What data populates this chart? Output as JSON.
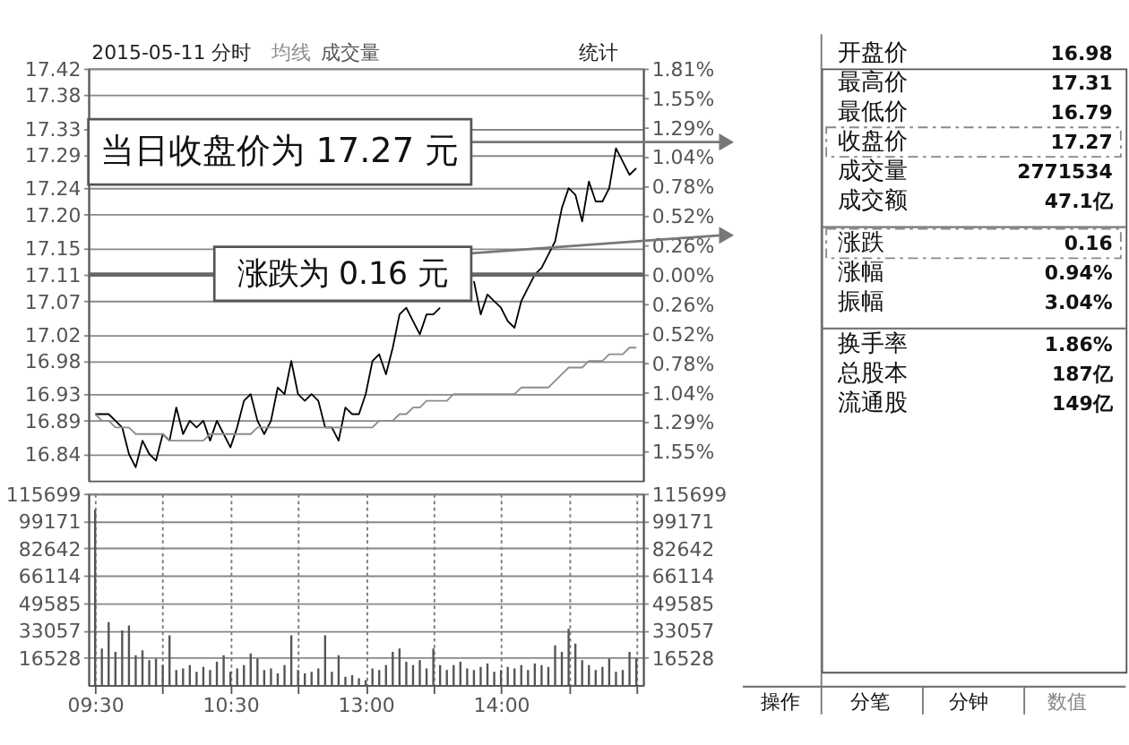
{
  "chart_data": [
    {
      "type": "line",
      "title": "2015-05-11 分时",
      "annotations": [
        "统计",
        "当日收盘价为 17.27 元",
        "涨跌为 0.16 元"
      ],
      "series": [
        {
          "color": "#000000",
          "values": [
            16.9,
            16.9,
            16.9,
            16.89,
            16.88,
            16.84,
            16.82,
            16.86,
            16.84,
            16.83,
            16.87,
            16.86,
            16.91,
            16.87,
            16.89,
            16.88,
            16.89,
            16.86,
            16.89,
            16.87,
            16.85,
            16.88,
            16.92,
            16.93,
            16.89,
            16.87,
            16.89,
            16.94,
            16.93,
            16.98,
            16.93,
            16.92,
            16.93,
            16.92,
            16.88,
            16.88,
            16.86,
            16.91,
            16.9,
            16.9,
            16.93,
            16.98,
            16.99,
            16.96,
            17.0,
            17.05,
            17.06,
            17.04,
            17.02,
            17.05,
            17.05,
            17.06,
            null,
            null,
            null,
            null,
            17.1,
            17.05,
            17.08,
            17.07,
            17.06,
            17.04,
            17.03,
            17.07,
            17.09,
            17.11,
            17.12,
            17.14,
            17.16,
            17.21,
            17.24,
            17.23,
            17.19,
            17.25,
            17.22,
            17.22,
            17.24,
            17.3,
            17.28,
            17.26,
            17.27
          ]
        },
        {
          "name": "均线",
          "color": "#8c8c8c",
          "values": [
            16.9,
            16.89,
            16.89,
            16.88,
            16.88,
            16.88,
            16.87,
            16.87,
            16.87,
            16.87,
            16.87,
            16.86,
            16.86,
            16.86,
            16.86,
            16.86,
            16.86,
            16.87,
            16.87,
            16.87,
            16.87,
            16.87,
            16.87,
            16.87,
            16.88,
            16.88,
            16.88,
            16.88,
            16.88,
            16.88,
            16.88,
            16.88,
            16.88,
            16.88,
            16.88,
            16.88,
            16.88,
            16.88,
            16.88,
            16.88,
            16.88,
            16.88,
            16.89,
            16.89,
            16.89,
            16.9,
            16.9,
            16.91,
            16.91,
            16.92,
            16.92,
            16.92,
            16.92,
            16.93,
            16.93,
            16.93,
            16.93,
            16.93,
            16.93,
            16.93,
            16.93,
            16.93,
            16.93,
            16.94,
            16.94,
            16.94,
            16.94,
            16.94,
            16.95,
            16.96,
            16.97,
            16.97,
            16.97,
            16.98,
            16.98,
            16.98,
            16.99,
            16.99,
            16.99,
            17.0,
            17.0
          ]
        }
      ],
      "ylim": [
        16.8,
        17.42
      ],
      "yticks": [
        17.42,
        17.38,
        17.33,
        17.29,
        17.24,
        {
          "value": 17.2,
          "label": "17.20"
        },
        17.15,
        17.11,
        17.07,
        17.02,
        16.98,
        16.93,
        16.89,
        16.84
      ],
      "y2lim": [
        -1.81,
        1.81
      ],
      "y2ticks": [
        {
          "value": 1.81,
          "label": "1.81%"
        },
        {
          "value": 1.55,
          "label": "1.55%"
        },
        {
          "value": 1.29,
          "label": "1.29%"
        },
        {
          "value": 1.04,
          "label": "1.04%"
        },
        {
          "value": 0.78,
          "label": "0.78%"
        },
        {
          "value": 0.52,
          "label": "0.52%"
        },
        {
          "value": 0.26,
          "label": "0.26%"
        },
        {
          "value": 0,
          "label": "0.00%"
        },
        {
          "value": -0.26,
          "label": "0.26%"
        },
        {
          "value": -0.52,
          "label": "0.52%"
        },
        {
          "value": -0.78,
          "label": "0.78%"
        },
        {
          "value": -1.04,
          "label": "1.04%"
        },
        {
          "value": -1.29,
          "label": "1.29%"
        },
        {
          "value": -1.55,
          "label": "1.55%"
        }
      ],
      "ref_lines": [
        {
          "axis": "y",
          "value": 17.11,
          "color": "#666666"
        }
      ],
      "grid": true,
      "legend": "top",
      "tick_labels": "y"
    },
    {
      "type": "bar",
      "categories": [
        "09:30",
        null,
        null,
        null,
        null,
        null,
        null,
        null,
        null,
        null,
        null,
        null,
        null,
        null,
        null,
        null,
        null,
        null,
        null,
        null,
        "10:30",
        null,
        null,
        null,
        null,
        null,
        null,
        null,
        null,
        null,
        null,
        null,
        null,
        null,
        null,
        null,
        null,
        null,
        null,
        null,
        "13:00",
        null,
        null,
        null,
        null,
        null,
        null,
        null,
        null,
        null,
        null,
        null,
        null,
        null,
        null,
        null,
        null,
        null,
        null,
        null,
        "14:00",
        null,
        null,
        null,
        null,
        null,
        null,
        null,
        null,
        null,
        null,
        null,
        null,
        null,
        null,
        null,
        null,
        null,
        null,
        null,
        null
      ],
      "series": [
        {
          "name": "成交量",
          "color": "#555555",
          "values": [
            106000,
            22000,
            38000,
            20000,
            33000,
            36000,
            18000,
            21000,
            15000,
            16000,
            12000,
            30000,
            9000,
            10000,
            12000,
            8000,
            11000,
            9000,
            14000,
            18000,
            8000,
            10000,
            12000,
            19000,
            16000,
            9000,
            10000,
            7000,
            12000,
            30000,
            9000,
            7000,
            8000,
            10000,
            30000,
            8000,
            18000,
            5000,
            6000,
            4000,
            3000,
            10000,
            9000,
            12000,
            20000,
            22000,
            14000,
            12000,
            15000,
            10000,
            22000,
            12000,
            9000,
            12000,
            14000,
            10000,
            9000,
            11000,
            13000,
            8000,
            9000,
            11000,
            10000,
            12000,
            9000,
            13000,
            12000,
            11000,
            24000,
            20000,
            34000,
            25000,
            15000,
            12000,
            9000,
            11000,
            16000,
            8000,
            9000,
            20000,
            16000
          ]
        }
      ],
      "ylim": [
        0,
        115699
      ],
      "yticks": [
        16528,
        33057,
        49585,
        66114,
        82642,
        99171,
        115699
      ],
      "y2lim": [
        0,
        115699
      ],
      "y2ticks": [
        16528,
        33057,
        49585,
        66114,
        82642,
        99171,
        115699
      ],
      "grid": true
    },
    {
      "type": "other",
      "annotations": [
        "开盘价",
        "16.98",
        "最高价",
        "17.31",
        "最低价",
        "16.79",
        "收盘价",
        "17.27",
        "成交量",
        "2771534",
        "成交额",
        "47.1亿",
        "涨跌",
        "0.16",
        "涨幅",
        "0.94%",
        "振幅",
        "3.04%",
        "换手率",
        "1.86%",
        "总股本",
        "187亿",
        "流通股",
        "149亿",
        "操作",
        "分笔",
        "分钟",
        "数值"
      ]
    }
  ]
}
